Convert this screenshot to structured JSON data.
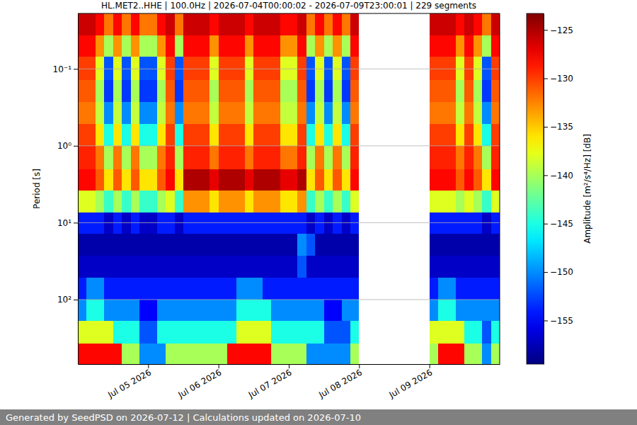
{
  "chart_data": {
    "type": "heatmap",
    "title": "HL.MET2..HHE | 100.0Hz | 2026-07-04T00:00:02 - 2026-07-09T23:00:01 | 229 segments",
    "ylabel": "Period [s]",
    "footer": "Generated by SeedPSD on 2026-07-12 | Calculations updated on 2026-07-10",
    "log": "y",
    "grid": "y",
    "xlim": [
      "2026-07-04T00:00",
      "2026-07-10T00:00"
    ],
    "xticks": [
      {
        "value": "2026-07-05T00:00",
        "label": "Jul 05 2026"
      },
      {
        "value": "2026-07-06T00:00",
        "label": "Jul 06 2026"
      },
      {
        "value": "2026-07-07T00:00",
        "label": "Jul 07 2026"
      },
      {
        "value": "2026-07-08T00:00",
        "label": "Jul 08 2026"
      },
      {
        "value": "2026-07-09T00:00",
        "label": "Jul 09 2026"
      }
    ],
    "ylim": [
      0.019,
      690
    ],
    "yticks": [
      {
        "value": 0.1,
        "label": "10⁻¹"
      },
      {
        "value": 1,
        "label": "10⁰"
      },
      {
        "value": 10,
        "label": "10¹"
      },
      {
        "value": 100,
        "label": "10²"
      }
    ],
    "colorbar": {
      "label": "Amplitude [m²/s⁴/Hz] [dB]",
      "range": [
        -159.5,
        -123.3
      ],
      "ticks": [
        {
          "value": -155,
          "label": "−155"
        },
        {
          "value": -150,
          "label": "−150"
        },
        {
          "value": -145,
          "label": "−145"
        },
        {
          "value": -140,
          "label": "−140"
        },
        {
          "value": -135,
          "label": "−135"
        },
        {
          "value": -130,
          "label": "−130"
        },
        {
          "value": -125,
          "label": "−125"
        }
      ]
    },
    "x_edges": [
      "2026-07-04T00:00",
      "2026-07-04T03:00",
      "2026-07-04T06:00",
      "2026-07-04T09:00",
      "2026-07-04T12:00",
      "2026-07-04T15:00",
      "2026-07-04T18:00",
      "2026-07-04T21:00",
      "2026-07-05T00:00",
      "2026-07-05T03:00",
      "2026-07-05T06:00",
      "2026-07-05T09:00",
      "2026-07-05T12:00",
      "2026-07-05T15:00",
      "2026-07-05T18:00",
      "2026-07-05T21:00",
      "2026-07-06T00:00",
      "2026-07-06T03:00",
      "2026-07-06T06:00",
      "2026-07-06T09:00",
      "2026-07-06T12:00",
      "2026-07-06T15:00",
      "2026-07-06T18:00",
      "2026-07-06T21:00",
      "2026-07-07T00:00",
      "2026-07-07T03:00",
      "2026-07-07T06:00",
      "2026-07-07T09:00",
      "2026-07-07T12:00",
      "2026-07-07T15:00",
      "2026-07-07T18:00",
      "2026-07-07T21:00",
      "2026-07-08T00:00",
      "2026-07-08T03:00",
      "2026-07-08T06:00",
      "2026-07-08T09:00",
      "2026-07-08T12:00",
      "2026-07-08T15:00",
      "2026-07-08T18:00",
      "2026-07-08T21:00",
      "2026-07-09T00:00",
      "2026-07-09T03:00",
      "2026-07-09T06:00",
      "2026-07-09T09:00",
      "2026-07-09T12:00",
      "2026-07-09T15:00",
      "2026-07-09T18:00",
      "2026-07-09T21:00",
      "2026-07-10T00:00"
    ],
    "y_edges": [
      0.019,
      0.037,
      0.07,
      0.14,
      0.27,
      0.52,
      1.0,
      2.0,
      3.8,
      7.3,
      14,
      27,
      52,
      100,
      190,
      370,
      690
    ],
    "z": [
      [
        -126,
        -126,
        -128,
        -132,
        -128,
        -132,
        -128,
        -132,
        -132,
        -128,
        -126,
        -132,
        -126,
        -126,
        -126,
        -128,
        -126,
        -126,
        -126,
        -128,
        -126,
        -126,
        -126,
        -128,
        -128,
        -126,
        -132,
        -128,
        -132,
        -128,
        -132,
        -126,
        null,
        null,
        null,
        null,
        null,
        null,
        null,
        null,
        -126,
        -126,
        -126,
        -128,
        -126,
        -128,
        -132,
        -126
      ],
      [
        -128,
        -128,
        -133,
        -140,
        -133,
        -140,
        -133,
        -140,
        -140,
        -133,
        -128,
        -140,
        -128,
        -128,
        -128,
        -133,
        -128,
        -128,
        -128,
        -133,
        -128,
        -128,
        -128,
        -133,
        -133,
        -128,
        -140,
        -133,
        -140,
        -133,
        -140,
        -128,
        null,
        null,
        null,
        null,
        null,
        null,
        null,
        null,
        -128,
        -128,
        -128,
        -133,
        -128,
        -133,
        -140,
        -128
      ],
      [
        -130,
        -130,
        -138,
        -152,
        -138,
        -152,
        -138,
        -152,
        -152,
        -138,
        -130,
        -152,
        -130,
        -130,
        -130,
        -138,
        -130,
        -130,
        -130,
        -138,
        -130,
        -130,
        -130,
        -138,
        -138,
        -130,
        -152,
        -138,
        -152,
        -138,
        -152,
        -130,
        null,
        null,
        null,
        null,
        null,
        null,
        null,
        null,
        -130,
        -130,
        -130,
        -138,
        -130,
        -138,
        -152,
        -130
      ],
      [
        -131,
        -131,
        -140,
        -153,
        -140,
        -153,
        -140,
        -153,
        -153,
        -140,
        -131,
        -153,
        -131,
        -131,
        -131,
        -140,
        -131,
        -131,
        -131,
        -140,
        -131,
        -131,
        -131,
        -140,
        -140,
        -131,
        -153,
        -140,
        -153,
        -140,
        -153,
        -131,
        null,
        null,
        null,
        null,
        null,
        null,
        null,
        null,
        -131,
        -131,
        -131,
        -140,
        -131,
        -140,
        -153,
        -131
      ],
      [
        -132,
        -132,
        -139,
        -150,
        -139,
        -150,
        -139,
        -150,
        -150,
        -139,
        -132,
        -150,
        -132,
        -132,
        -132,
        -139,
        -132,
        -132,
        -132,
        -139,
        -132,
        -132,
        -132,
        -139,
        -139,
        -132,
        -150,
        -139,
        -150,
        -139,
        -150,
        -132,
        null,
        null,
        null,
        null,
        null,
        null,
        null,
        null,
        -132,
        -132,
        -132,
        -139,
        -132,
        -139,
        -150,
        -132
      ],
      [
        -130,
        -130,
        -136,
        -145,
        -136,
        -145,
        -136,
        -145,
        -145,
        -136,
        -130,
        -145,
        -130,
        -130,
        -130,
        -136,
        -130,
        -130,
        -130,
        -136,
        -130,
        -130,
        -130,
        -136,
        -136,
        -130,
        -145,
        -136,
        -145,
        -136,
        -145,
        -130,
        null,
        null,
        null,
        null,
        null,
        null,
        null,
        null,
        -130,
        -130,
        -130,
        -136,
        -130,
        -136,
        -145,
        -130
      ],
      [
        -129,
        -129,
        -132,
        -140,
        -132,
        -140,
        -132,
        -140,
        -140,
        -132,
        -129,
        -140,
        -129,
        -129,
        -129,
        -132,
        -129,
        -129,
        -129,
        -132,
        -129,
        -129,
        -129,
        -132,
        -132,
        -129,
        -140,
        -132,
        -140,
        -132,
        -140,
        -129,
        null,
        null,
        null,
        null,
        null,
        null,
        null,
        null,
        -129,
        -129,
        -129,
        -132,
        -129,
        -132,
        -140,
        -129
      ],
      [
        -128,
        -128,
        -131,
        -136,
        -131,
        -136,
        -131,
        -136,
        -136,
        -131,
        -128,
        -136,
        -125,
        -125,
        -125,
        -127,
        -125,
        -125,
        -125,
        -127,
        -125,
        -125,
        -125,
        -127,
        -127,
        -125,
        -136,
        -131,
        -136,
        -131,
        -136,
        -128,
        null,
        null,
        null,
        null,
        null,
        null,
        null,
        null,
        -128,
        -128,
        -128,
        -131,
        -128,
        -131,
        -136,
        -128
      ],
      [
        -138,
        -138,
        -140,
        -144,
        -140,
        -144,
        -140,
        -144,
        -144,
        -140,
        -138,
        -144,
        -133,
        -133,
        -133,
        -136,
        -133,
        -133,
        -133,
        -136,
        -133,
        -133,
        -133,
        -136,
        -136,
        -133,
        -144,
        -140,
        -144,
        -140,
        -144,
        -138,
        null,
        null,
        null,
        null,
        null,
        null,
        null,
        null,
        -138,
        -138,
        -138,
        -140,
        -138,
        -140,
        -144,
        -138
      ],
      [
        -154,
        -154,
        -154,
        -157,
        -154,
        -157,
        -154,
        -157,
        -157,
        -154,
        -154,
        -157,
        -154,
        -154,
        -154,
        -154,
        -154,
        -154,
        -154,
        -154,
        -154,
        -154,
        -154,
        -154,
        -154,
        -154,
        -157,
        -154,
        -157,
        -154,
        -157,
        -154,
        null,
        null,
        null,
        null,
        null,
        null,
        null,
        null,
        -154,
        -154,
        -154,
        -154,
        -154,
        -154,
        -157,
        -154
      ],
      [
        -158,
        -158,
        -158,
        -158,
        -158,
        -158,
        -158,
        -158,
        -158,
        -158,
        -158,
        -158,
        -158,
        -158,
        -158,
        -158,
        -158,
        -158,
        -158,
        -158,
        -158,
        -158,
        -158,
        -158,
        -158,
        -150,
        -152,
        -158,
        -158,
        -158,
        -158,
        -158,
        null,
        null,
        null,
        null,
        null,
        null,
        null,
        null,
        -158,
        -158,
        -158,
        -158,
        -158,
        -158,
        -158,
        -158
      ],
      [
        -157,
        -157,
        -157,
        -157,
        -157,
        -157,
        -157,
        -157,
        -157,
        -157,
        -157,
        -157,
        -157,
        -157,
        -157,
        -157,
        -157,
        -157,
        -157,
        -157,
        -157,
        -157,
        -157,
        -157,
        -157,
        -152,
        -157,
        -157,
        -157,
        -157,
        -157,
        -157,
        null,
        null,
        null,
        null,
        null,
        null,
        null,
        null,
        -157,
        -157,
        -157,
        -157,
        -157,
        -157,
        -157,
        -157
      ],
      [
        -154,
        -150,
        -150,
        -154,
        -154,
        -154,
        -154,
        -154,
        -154,
        -154,
        -154,
        -154,
        -154,
        -154,
        -154,
        -154,
        -154,
        -154,
        -150,
        -150,
        -150,
        -154,
        -154,
        -154,
        -154,
        -154,
        -154,
        -154,
        -154,
        -154,
        -154,
        -154,
        null,
        null,
        null,
        null,
        null,
        null,
        null,
        null,
        -154,
        -150,
        -150,
        -154,
        -154,
        -154,
        -154,
        -154
      ],
      [
        -150,
        -145,
        -145,
        -150,
        -150,
        -150,
        -150,
        -155,
        -155,
        -150,
        -150,
        -150,
        -150,
        -150,
        -150,
        -150,
        -150,
        -150,
        -145,
        -145,
        -145,
        -145,
        -150,
        -150,
        -150,
        -150,
        -150,
        -150,
        -155,
        -155,
        -150,
        -150,
        null,
        null,
        null,
        null,
        null,
        null,
        null,
        null,
        -150,
        -145,
        -145,
        -150,
        -150,
        -150,
        -150,
        -150
      ],
      [
        -138,
        -138,
        -138,
        -138,
        -145,
        -145,
        -145,
        -152,
        -152,
        -145,
        -145,
        -145,
        -145,
        -145,
        -145,
        -145,
        -145,
        -145,
        -138,
        -138,
        -138,
        -138,
        -145,
        -145,
        -145,
        -145,
        -145,
        -145,
        -152,
        -152,
        -152,
        -145,
        null,
        null,
        null,
        null,
        null,
        null,
        null,
        null,
        -138,
        -138,
        -138,
        -138,
        -145,
        -145,
        -152,
        -145
      ],
      [
        -128,
        -128,
        -128,
        -128,
        -128,
        -140,
        -140,
        -150,
        -150,
        -150,
        -140,
        -140,
        -140,
        -140,
        -140,
        -140,
        -140,
        -128,
        -128,
        -128,
        -128,
        -128,
        -140,
        -140,
        -140,
        -140,
        -150,
        -150,
        -150,
        -150,
        -150,
        -140,
        null,
        null,
        null,
        null,
        null,
        null,
        null,
        null,
        -140,
        -128,
        -128,
        -128,
        -140,
        -140,
        -150,
        -140
      ]
    ]
  }
}
